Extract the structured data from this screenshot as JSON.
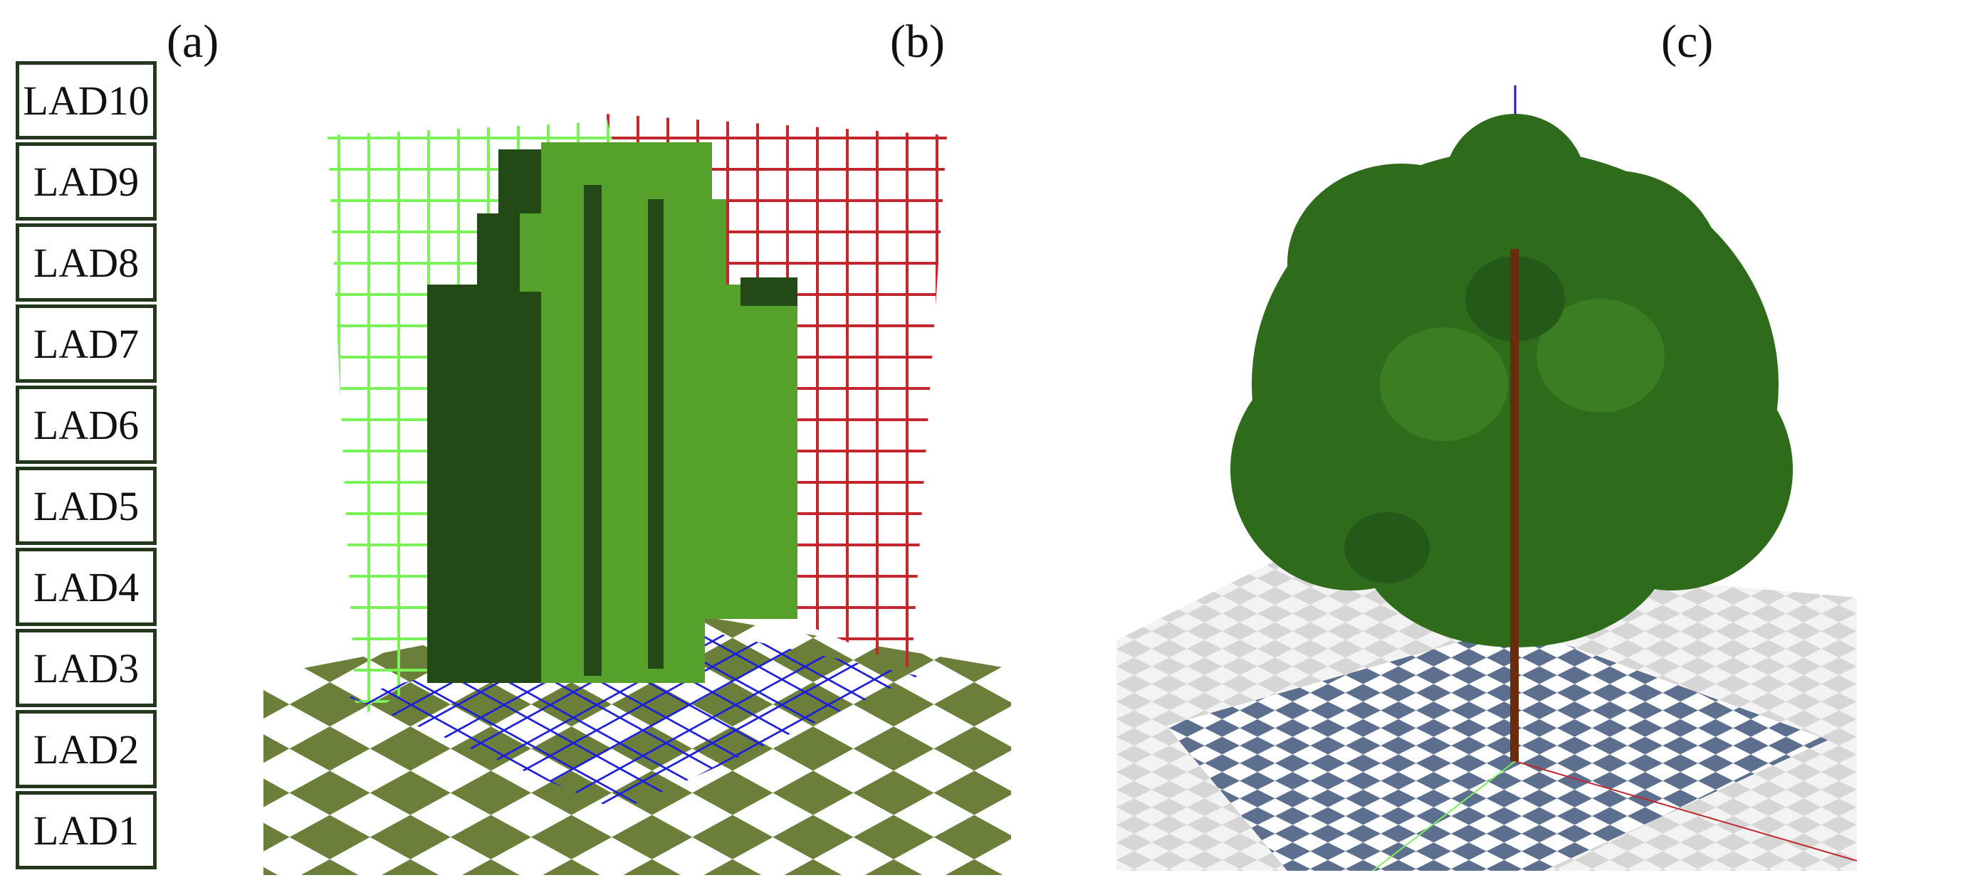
{
  "panels": {
    "a_label": "(a)",
    "b_label": "(b)",
    "c_label": "(c)"
  },
  "legend": {
    "items": [
      "LAD10",
      "LAD9",
      "LAD8",
      "LAD7",
      "LAD6",
      "LAD5",
      "LAD4",
      "LAD3",
      "LAD2",
      "LAD1"
    ]
  },
  "colors": {
    "legend_border": "#23371d",
    "voxel_light": "#55a12b",
    "voxel_dark": "#234a16",
    "ground_olive": "#6b7f3a",
    "grid_green": "#7bf15a",
    "grid_red": "#c1272d",
    "grid_blue": "#1d1fd8",
    "tree_foliage": "#2e6b1a",
    "trunk": "#6b2b0e",
    "ground_tile": "#5d6f8f"
  }
}
